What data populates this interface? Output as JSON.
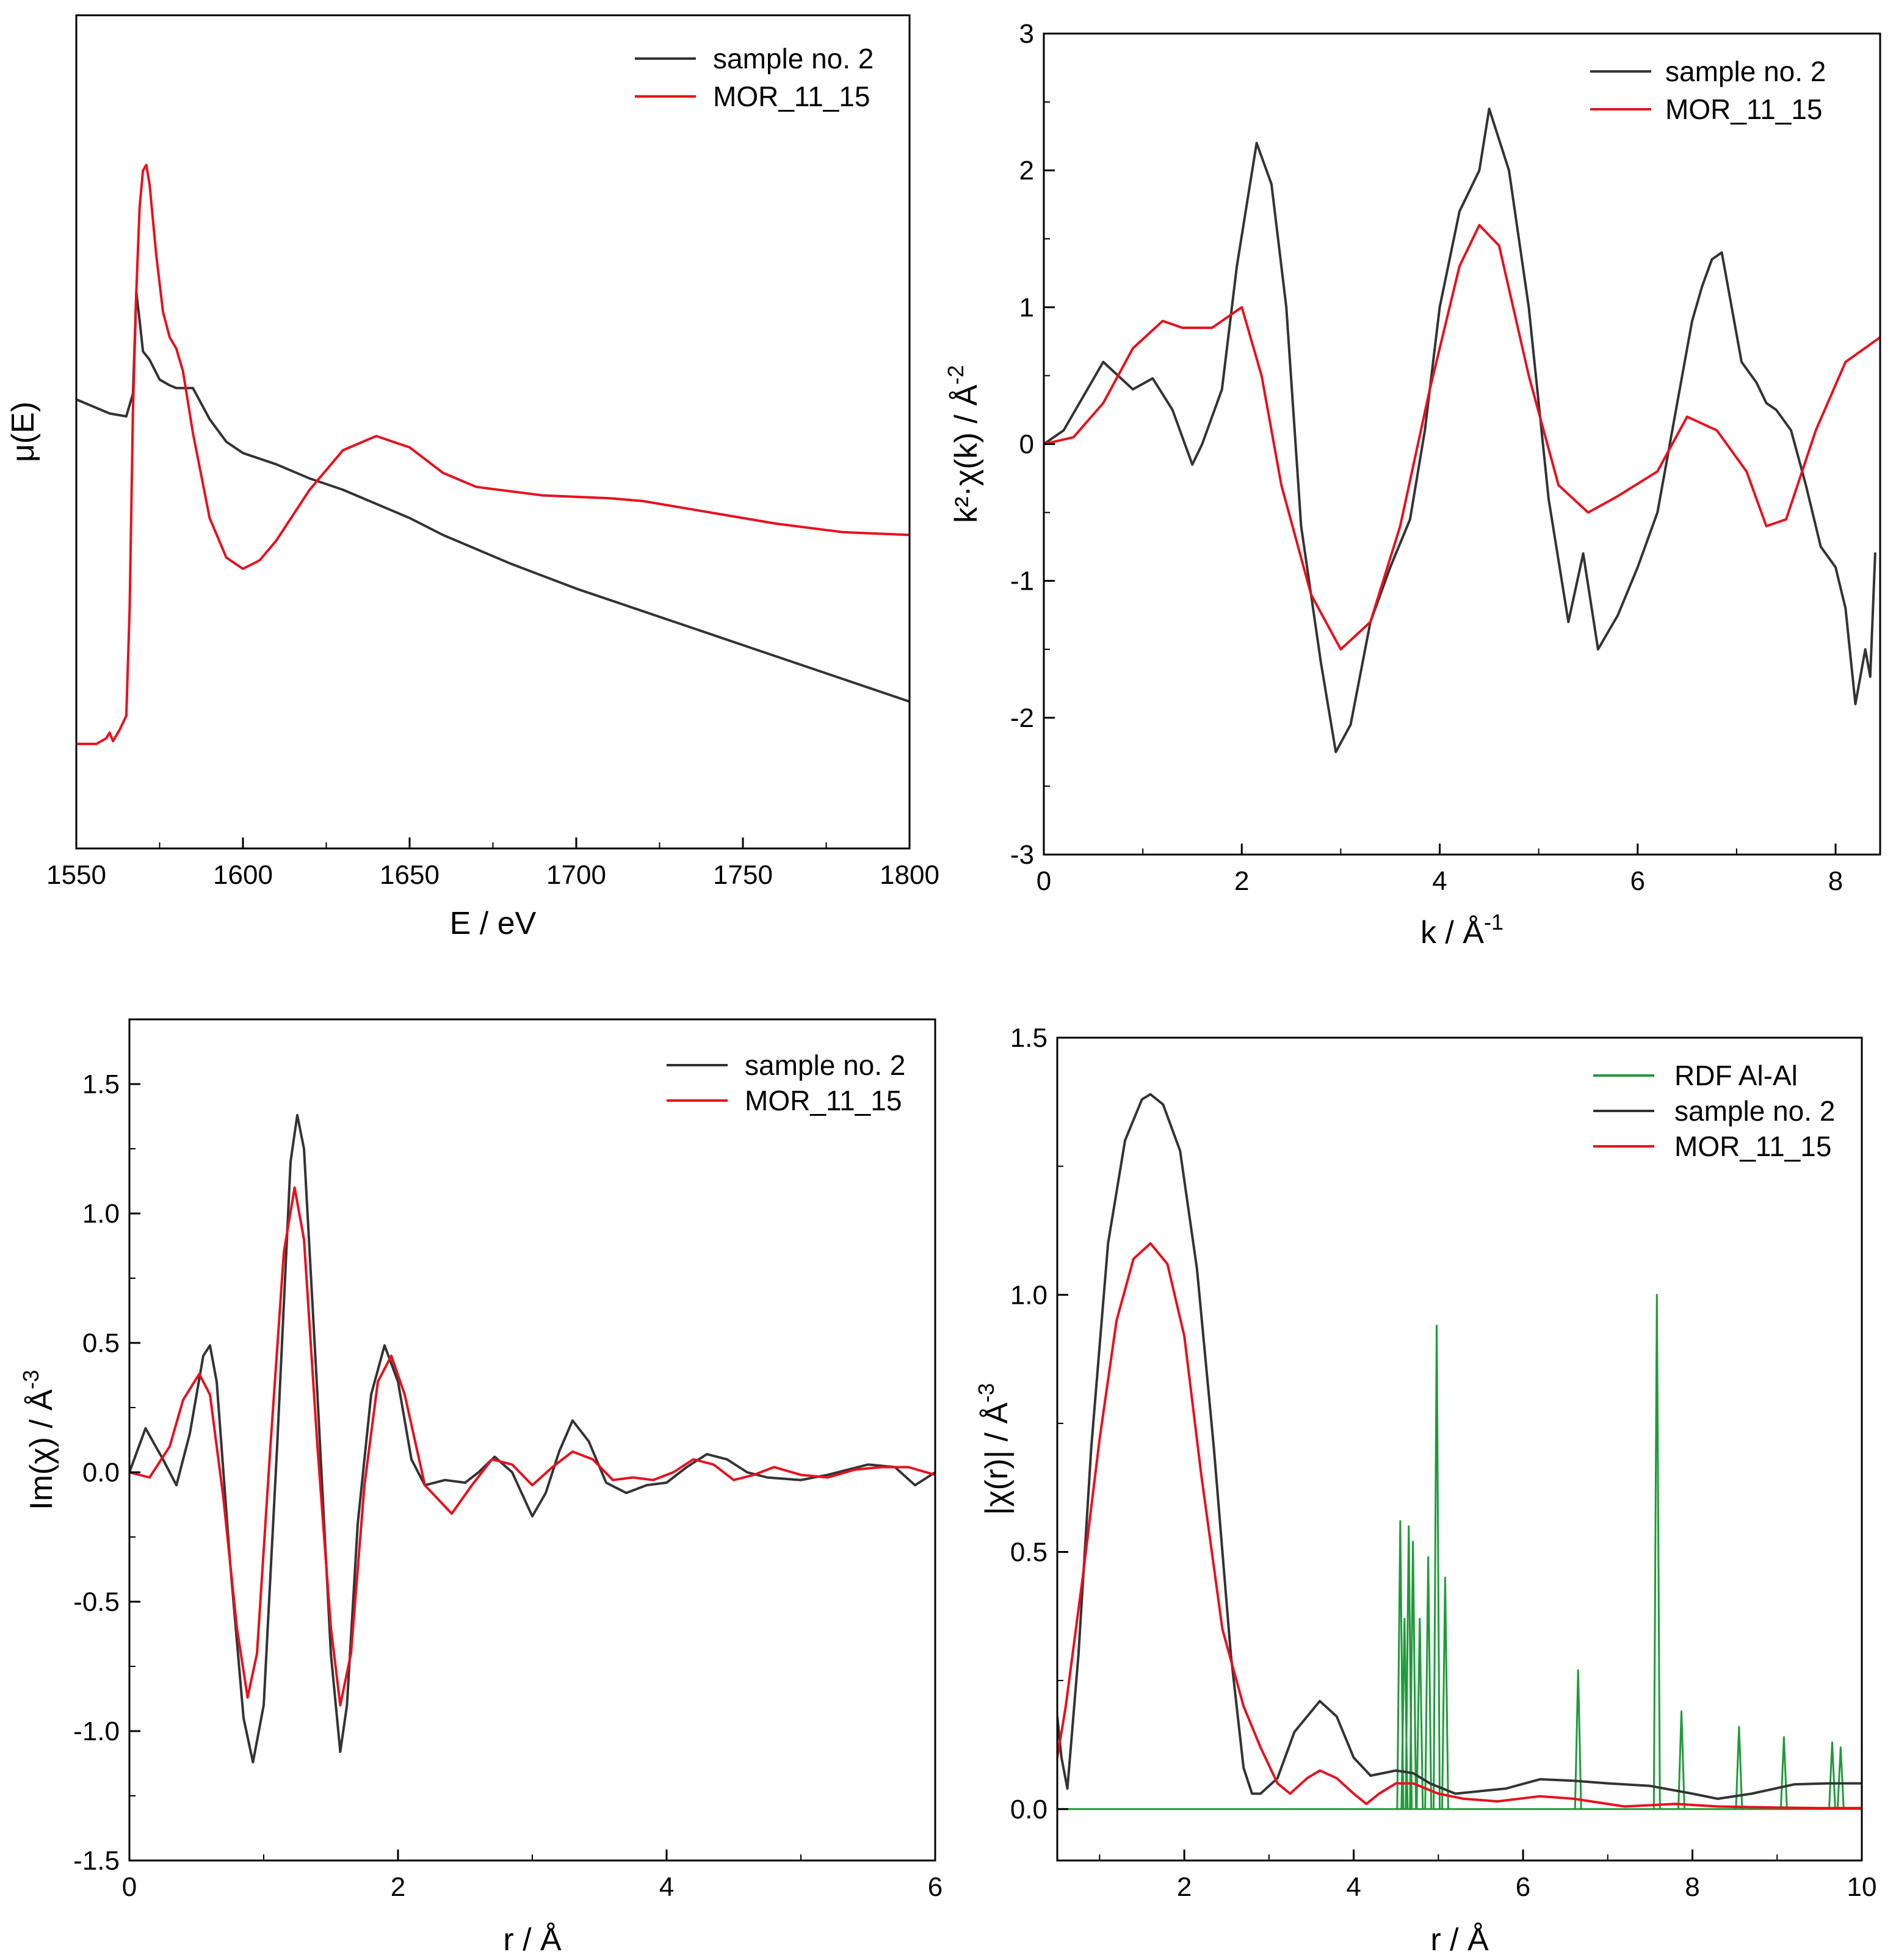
{
  "colors": {
    "sample": "#333333",
    "mor": "#e8101e",
    "rdf": "#1f9a3a",
    "axis": "#000000"
  },
  "chart_data": [
    {
      "id": "xanes",
      "type": "line",
      "xlabel": "E / eV",
      "ylabel": "μ(E)",
      "xlim": [
        1550,
        1800
      ],
      "ylim": [
        -1.35,
        1.6
      ],
      "xticks": [
        1550,
        1600,
        1650,
        1700,
        1750,
        1800
      ],
      "xtick_labels": [
        "1550",
        "1600",
        "1650",
        "1700",
        "1750",
        "1800"
      ],
      "xminor": [
        1575,
        1625,
        1675,
        1725,
        1775
      ],
      "yticks": [],
      "ytick_labels": [],
      "legend": {
        "position": "top-right",
        "entries": [
          "sample no. 2",
          "MOR_11_15"
        ]
      },
      "series": [
        {
          "name": "sample no. 2",
          "color": "sample",
          "x": [
            1550,
            1560,
            1565,
            1567,
            1568,
            1569,
            1570,
            1572,
            1575,
            1578,
            1580,
            1585,
            1590,
            1595,
            1600,
            1610,
            1620,
            1630,
            1640,
            1650,
            1660,
            1680,
            1700,
            1720,
            1740,
            1760,
            1780,
            1800
          ],
          "y": [
            0.24,
            0.19,
            0.18,
            0.26,
            0.62,
            0.52,
            0.41,
            0.38,
            0.31,
            0.29,
            0.28,
            0.28,
            0.17,
            0.09,
            0.05,
            0.01,
            -0.04,
            -0.08,
            -0.13,
            -0.18,
            -0.24,
            -0.34,
            -0.43,
            -0.51,
            -0.59,
            -0.67,
            -0.75,
            -0.83
          ]
        },
        {
          "name": "MOR_11_15",
          "color": "mor",
          "x": [
            1550,
            1556,
            1559,
            1560,
            1561,
            1563,
            1565,
            1566,
            1567,
            1568,
            1569,
            1570,
            1571,
            1572,
            1574,
            1576,
            1578,
            1580,
            1582,
            1585,
            1590,
            1595,
            1600,
            1605,
            1610,
            1620,
            1630,
            1640,
            1650,
            1660,
            1670,
            1690,
            1710,
            1720,
            1740,
            1760,
            1780,
            1800
          ],
          "y": [
            -0.98,
            -0.98,
            -0.96,
            -0.94,
            -0.97,
            -0.93,
            -0.88,
            -0.5,
            0.2,
            0.62,
            0.92,
            1.05,
            1.07,
            1.0,
            0.75,
            0.55,
            0.46,
            0.42,
            0.34,
            0.12,
            -0.18,
            -0.32,
            -0.36,
            -0.33,
            -0.26,
            -0.08,
            0.06,
            0.11,
            0.07,
            -0.02,
            -0.07,
            -0.1,
            -0.11,
            -0.12,
            -0.16,
            -0.2,
            -0.23,
            -0.24
          ]
        }
      ]
    },
    {
      "id": "kspace",
      "type": "line",
      "xlabel": "k / Å",
      "xlabel_sup": "-1",
      "ylabel": "k²·χ(k) / Å",
      "ylabel_sup": "-2",
      "xlim": [
        0,
        8.45
      ],
      "ylim": [
        -3,
        3
      ],
      "xticks": [
        0,
        2,
        4,
        6,
        8
      ],
      "xtick_labels": [
        "0",
        "2",
        "4",
        "6",
        "8"
      ],
      "xminor": [
        1,
        3,
        5,
        7
      ],
      "yticks": [
        -3,
        -2,
        -1,
        0,
        1,
        2,
        3
      ],
      "ytick_labels": [
        "-3",
        "-2",
        "-1",
        "0",
        "1",
        "2",
        "3"
      ],
      "yminor": [
        -2.5,
        -1.5,
        -0.5,
        0.5,
        1.5,
        2.5
      ],
      "legend": {
        "position": "top-right",
        "entries": [
          "sample no. 2",
          "MOR_11_15"
        ]
      },
      "series": [
        {
          "name": "sample no. 2",
          "color": "sample",
          "x": [
            0,
            0.2,
            0.4,
            0.6,
            0.75,
            0.9,
            1.1,
            1.3,
            1.5,
            1.6,
            1.8,
            1.95,
            2.15,
            2.3,
            2.45,
            2.6,
            2.8,
            2.95,
            3.1,
            3.3,
            3.5,
            3.7,
            3.85,
            4.0,
            4.2,
            4.4,
            4.5,
            4.7,
            4.9,
            5.1,
            5.3,
            5.45,
            5.6,
            5.8,
            6.0,
            6.2,
            6.4,
            6.55,
            6.65,
            6.75,
            6.85,
            6.95,
            7.05,
            7.2,
            7.3,
            7.4,
            7.55,
            7.7,
            7.85,
            8.0,
            8.1,
            8.2,
            8.3,
            8.35,
            8.4
          ],
          "y": [
            0,
            0.1,
            0.35,
            0.6,
            0.5,
            0.4,
            0.48,
            0.25,
            -0.15,
            0.0,
            0.4,
            1.3,
            2.2,
            1.9,
            1.0,
            -0.6,
            -1.6,
            -2.25,
            -2.05,
            -1.3,
            -0.9,
            -0.55,
            0.1,
            1.0,
            1.7,
            2.0,
            2.45,
            2.0,
            1.0,
            -0.4,
            -1.3,
            -0.8,
            -1.5,
            -1.25,
            -0.9,
            -0.5,
            0.3,
            0.9,
            1.15,
            1.35,
            1.4,
            1.0,
            0.6,
            0.45,
            0.3,
            0.25,
            0.1,
            -0.3,
            -0.75,
            -0.9,
            -1.2,
            -1.9,
            -1.5,
            -1.7,
            -0.8
          ]
        },
        {
          "name": "MOR_11_15",
          "color": "mor",
          "x": [
            0,
            0.3,
            0.6,
            0.9,
            1.2,
            1.4,
            1.7,
            2.0,
            2.2,
            2.4,
            2.7,
            3.0,
            3.3,
            3.6,
            3.9,
            4.2,
            4.4,
            4.6,
            4.9,
            5.2,
            5.5,
            5.8,
            6.2,
            6.5,
            6.8,
            7.1,
            7.3,
            7.5,
            7.8,
            8.1,
            8.45
          ],
          "y": [
            0,
            0.05,
            0.3,
            0.7,
            0.9,
            0.85,
            0.85,
            1.0,
            0.5,
            -0.3,
            -1.1,
            -1.5,
            -1.3,
            -0.6,
            0.4,
            1.3,
            1.6,
            1.45,
            0.5,
            -0.3,
            -0.5,
            -0.38,
            -0.2,
            0.2,
            0.1,
            -0.2,
            -0.6,
            -0.55,
            0.1,
            0.6,
            0.78
          ]
        }
      ]
    },
    {
      "id": "imag",
      "type": "line",
      "xlabel": "r / Å",
      "ylabel": "Im(χ) / Å",
      "ylabel_sup": "-3",
      "xlim": [
        0,
        6
      ],
      "ylim": [
        -1.5,
        1.75
      ],
      "xticks": [
        0,
        2,
        4,
        6
      ],
      "xtick_labels": [
        "0",
        "2",
        "4",
        "6"
      ],
      "xminor": [
        1,
        3,
        5
      ],
      "yticks": [
        -1.5,
        -1.0,
        -0.5,
        0.0,
        0.5,
        1.0,
        1.5
      ],
      "ytick_labels": [
        "-1.5",
        "-1.0",
        "-0.5",
        "0.0",
        "0.5",
        "1.0",
        "1.5"
      ],
      "yminor": [
        -1.25,
        -0.75,
        -0.25,
        0.25,
        0.75,
        1.25
      ],
      "legend": {
        "position": "top-right",
        "entries": [
          "sample no. 2",
          "MOR_11_15"
        ]
      },
      "series": [
        {
          "name": "sample no. 2",
          "color": "sample",
          "x": [
            0,
            0.12,
            0.25,
            0.35,
            0.45,
            0.55,
            0.6,
            0.65,
            0.75,
            0.85,
            0.92,
            1.0,
            1.1,
            1.2,
            1.25,
            1.3,
            1.4,
            1.5,
            1.57,
            1.62,
            1.7,
            1.8,
            1.9,
            2.0,
            2.1,
            2.2,
            2.35,
            2.5,
            2.6,
            2.72,
            2.85,
            3.0,
            3.1,
            3.2,
            3.3,
            3.42,
            3.55,
            3.7,
            3.85,
            4.0,
            4.15,
            4.3,
            4.45,
            4.6,
            4.75,
            5.0,
            5.2,
            5.5,
            5.7,
            5.85,
            6.0
          ],
          "y": [
            0,
            0.17,
            0.05,
            -0.05,
            0.15,
            0.45,
            0.49,
            0.35,
            -0.35,
            -0.95,
            -1.12,
            -0.9,
            0.1,
            1.2,
            1.38,
            1.25,
            0.3,
            -0.7,
            -1.08,
            -0.9,
            -0.2,
            0.3,
            0.49,
            0.35,
            0.05,
            -0.05,
            -0.03,
            -0.04,
            0.0,
            0.06,
            0.0,
            -0.17,
            -0.08,
            0.08,
            0.2,
            0.12,
            -0.04,
            -0.08,
            -0.05,
            -0.04,
            0.02,
            0.07,
            0.05,
            0.0,
            -0.02,
            -0.03,
            -0.01,
            0.03,
            0.02,
            -0.05,
            0.0
          ]
        },
        {
          "name": "MOR_11_15",
          "color": "mor",
          "x": [
            0,
            0.15,
            0.3,
            0.4,
            0.52,
            0.6,
            0.7,
            0.8,
            0.88,
            0.95,
            1.05,
            1.15,
            1.23,
            1.3,
            1.4,
            1.5,
            1.57,
            1.65,
            1.75,
            1.85,
            1.95,
            2.05,
            2.2,
            2.4,
            2.55,
            2.7,
            2.85,
            3.0,
            3.15,
            3.3,
            3.45,
            3.6,
            3.75,
            3.9,
            4.05,
            4.2,
            4.35,
            4.5,
            4.65,
            4.8,
            5.0,
            5.2,
            5.4,
            5.6,
            5.8,
            6.0
          ],
          "y": [
            0,
            -0.02,
            0.1,
            0.28,
            0.38,
            0.3,
            -0.1,
            -0.6,
            -0.87,
            -0.7,
            0.1,
            0.85,
            1.1,
            0.9,
            0.1,
            -0.6,
            -0.9,
            -0.7,
            -0.05,
            0.35,
            0.45,
            0.3,
            -0.05,
            -0.16,
            -0.05,
            0.05,
            0.03,
            -0.05,
            0.02,
            0.08,
            0.05,
            -0.03,
            -0.02,
            -0.03,
            0.0,
            0.05,
            0.03,
            -0.03,
            -0.01,
            0.02,
            -0.01,
            -0.02,
            0.01,
            0.02,
            0.02,
            -0.01
          ]
        }
      ]
    },
    {
      "id": "magnitude",
      "type": "line",
      "xlabel": "r / Å",
      "ylabel": "|χ(r)| / Å",
      "ylabel_sup": "-3",
      "xlim": [
        0.5,
        10
      ],
      "ylim": [
        -0.1,
        1.5
      ],
      "xticks": [
        2,
        4,
        6,
        8,
        10
      ],
      "xtick_labels": [
        "2",
        "4",
        "6",
        "8",
        "10"
      ],
      "xminor": [
        1,
        3,
        5,
        7,
        9
      ],
      "yticks": [
        0.0,
        0.5,
        1.0,
        1.5
      ],
      "ytick_labels": [
        "0.0",
        "0.5",
        "1.0",
        "1.5"
      ],
      "yminor": [
        0.25,
        0.75,
        1.25
      ],
      "legend": {
        "position": "top-right",
        "entries": [
          "RDF Al-Al",
          "sample no. 2",
          "MOR_11_15"
        ]
      },
      "series": [
        {
          "name": "RDF Al-Al",
          "color": "rdf",
          "kind": "spikes",
          "baseline": 0.0,
          "x": [
            4.55,
            4.6,
            4.65,
            4.7,
            4.78,
            4.88,
            4.98,
            5.08,
            6.65,
            7.58,
            7.87,
            8.55,
            9.08,
            9.65,
            9.75
          ],
          "y": [
            0.56,
            0.37,
            0.55,
            0.52,
            0.37,
            0.49,
            0.94,
            0.45,
            0.27,
            1.0,
            0.19,
            0.16,
            0.14,
            0.13,
            0.12
          ]
        },
        {
          "name": "sample no. 2",
          "color": "sample",
          "x": [
            0.5,
            0.55,
            0.62,
            0.75,
            0.9,
            1.1,
            1.3,
            1.5,
            1.6,
            1.75,
            1.95,
            2.15,
            2.35,
            2.55,
            2.7,
            2.8,
            2.9,
            3.1,
            3.3,
            3.6,
            3.8,
            4.0,
            4.2,
            4.5,
            4.7,
            4.9,
            5.2,
            5.5,
            5.8,
            6.2,
            6.6,
            7.0,
            7.5,
            8.0,
            8.3,
            8.7,
            9.2,
            9.6,
            10.0
          ],
          "y": [
            0.18,
            0.1,
            0.04,
            0.3,
            0.7,
            1.1,
            1.3,
            1.38,
            1.39,
            1.37,
            1.28,
            1.05,
            0.7,
            0.3,
            0.08,
            0.03,
            0.03,
            0.06,
            0.15,
            0.21,
            0.18,
            0.1,
            0.065,
            0.075,
            0.07,
            0.05,
            0.03,
            0.035,
            0.04,
            0.058,
            0.055,
            0.05,
            0.045,
            0.03,
            0.02,
            0.03,
            0.048,
            0.05,
            0.05
          ]
        },
        {
          "name": "MOR_11_15",
          "color": "mor",
          "x": [
            0.5,
            0.6,
            0.8,
            1.0,
            1.2,
            1.4,
            1.6,
            1.8,
            2.0,
            2.2,
            2.45,
            2.7,
            2.9,
            3.1,
            3.25,
            3.45,
            3.6,
            3.8,
            4.0,
            4.15,
            4.3,
            4.5,
            4.7,
            5.0,
            5.3,
            5.7,
            6.2,
            6.6,
            7.2,
            7.8,
            8.3,
            9.0,
            9.5,
            10.0
          ],
          "y": [
            0.1,
            0.2,
            0.45,
            0.72,
            0.95,
            1.07,
            1.1,
            1.06,
            0.92,
            0.65,
            0.35,
            0.2,
            0.12,
            0.05,
            0.03,
            0.06,
            0.075,
            0.06,
            0.03,
            0.01,
            0.03,
            0.05,
            0.05,
            0.03,
            0.02,
            0.015,
            0.025,
            0.02,
            0.005,
            0.01,
            0.005,
            0.003,
            0.002,
            0.002
          ]
        }
      ]
    }
  ]
}
